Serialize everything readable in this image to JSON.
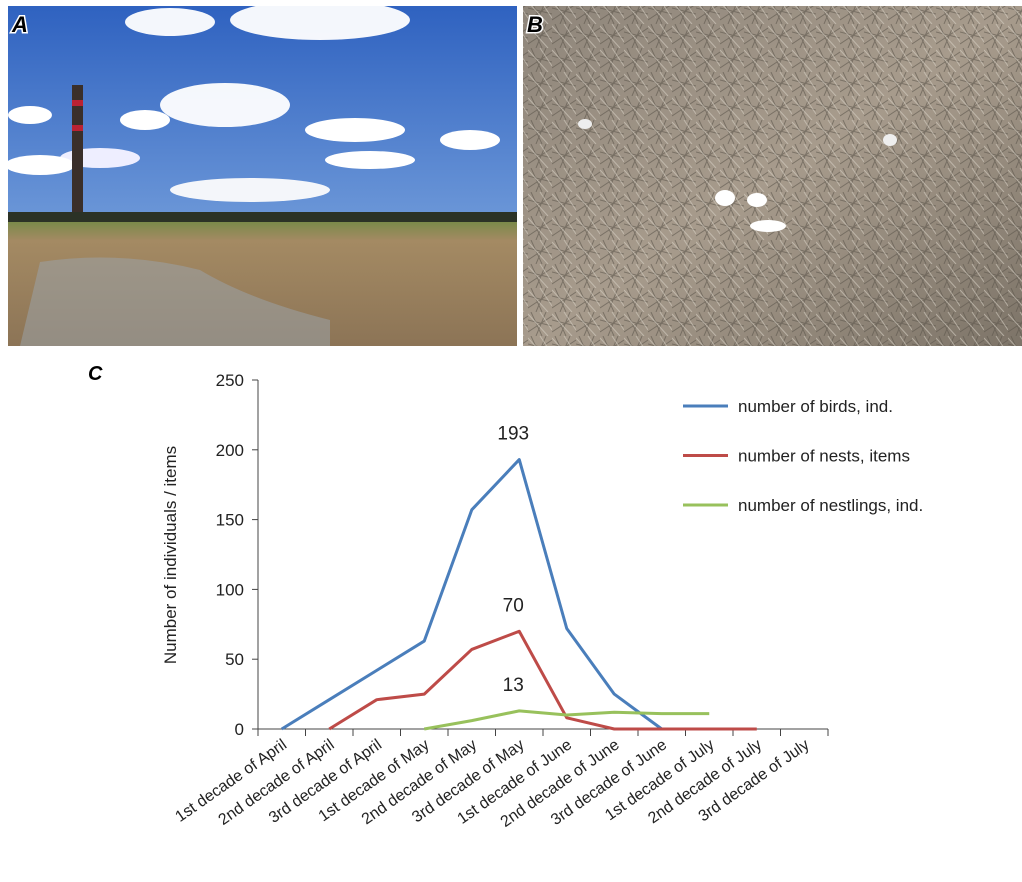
{
  "panel_labels": [
    "A",
    "B",
    "C"
  ],
  "chart_data": {
    "type": "line",
    "y_label": "Number of individuals / items",
    "categories": [
      "1st decade of April",
      "2nd decade of April",
      "3rd decade of April",
      "1st decade of May",
      "2nd decade of May",
      "3rd decade of May",
      "1st decade of June",
      "2nd decade of June",
      "3rd decade of June",
      "1st decade of July",
      "2nd decade of July",
      "3rd decade of July"
    ],
    "series": [
      {
        "name": "number of birds, ind.",
        "color": "#4a7ebb",
        "values": [
          0,
          21,
          42,
          63,
          157,
          193,
          72,
          25,
          0,
          null,
          null,
          null
        ]
      },
      {
        "name": "number of nests, items",
        "color": "#be4b48",
        "values": [
          null,
          0,
          21,
          25,
          57,
          70,
          8,
          0,
          0,
          0,
          0,
          null
        ]
      },
      {
        "name": "number of nestlings, ind.",
        "color": "#98c15c",
        "values": [
          null,
          null,
          null,
          0,
          6,
          13,
          10,
          12,
          11,
          11,
          null,
          null
        ]
      }
    ],
    "labeled_points": [
      [
        0,
        5
      ],
      [
        1,
        5
      ],
      [
        2,
        5
      ]
    ],
    "ylim": [
      0,
      250
    ],
    "yticks": [
      0,
      50,
      100,
      150,
      200,
      250
    ],
    "legend": "top-right"
  }
}
